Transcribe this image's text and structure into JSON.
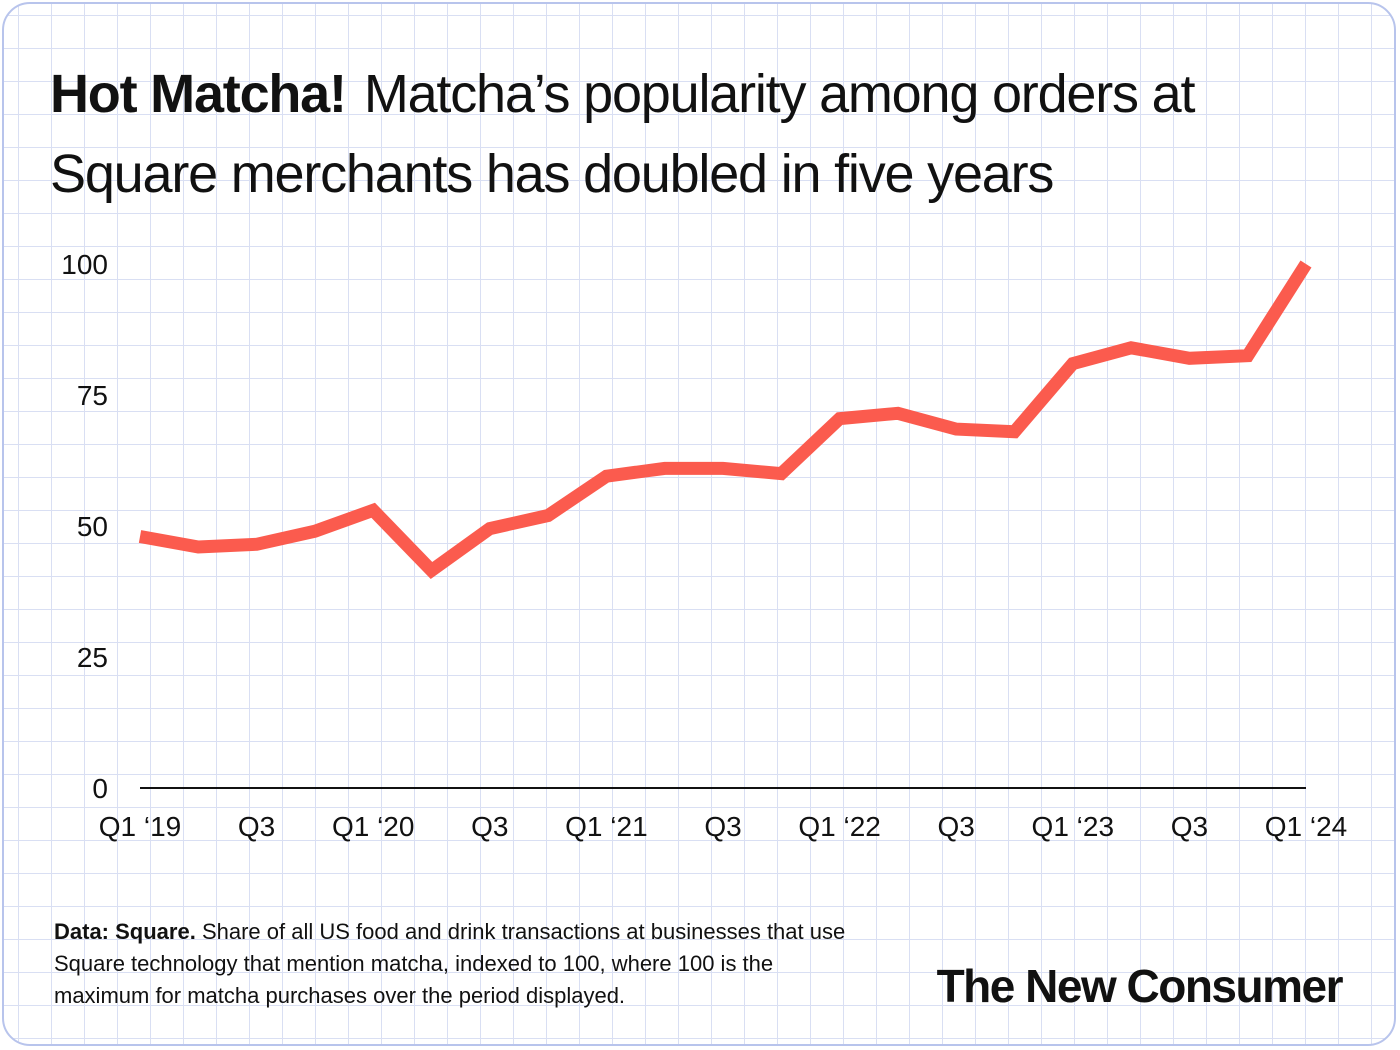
{
  "title": {
    "bold": "Hot Matcha!",
    "rest": "Matcha’s popularity among orders at Square merchants has doubled in five years"
  },
  "chart_data": {
    "type": "line",
    "title": "Hot Matcha! Matcha’s popularity among orders at Square merchants has doubled in five years",
    "xlabel": "",
    "ylabel": "",
    "ylim": [
      0,
      100
    ],
    "yticks": [
      0,
      25,
      50,
      75,
      100
    ],
    "grid": true,
    "x": [
      "Q1 2019",
      "Q2 2019",
      "Q3 2019",
      "Q4 2019",
      "Q1 2020",
      "Q2 2020",
      "Q3 2020",
      "Q4 2020",
      "Q1 2021",
      "Q2 2021",
      "Q3 2021",
      "Q4 2021",
      "Q1 2022",
      "Q2 2022",
      "Q3 2022",
      "Q4 2022",
      "Q1 2023",
      "Q2 2023",
      "Q3 2023",
      "Q4 2023",
      "Q1 2024"
    ],
    "xtick_labels": [
      "Q1 ‘19",
      "Q3",
      "Q1 ‘20",
      "Q3",
      "Q1 ‘21",
      "Q3",
      "Q1 ‘22",
      "Q3",
      "Q1 ‘23",
      "Q3",
      "Q1 ‘24"
    ],
    "xtick_indices": [
      0,
      2,
      4,
      6,
      8,
      10,
      12,
      14,
      16,
      18,
      20
    ],
    "series": [
      {
        "name": "Matcha popularity index",
        "color": "#fb5b4e",
        "values": [
          48,
          46,
          46.5,
          49,
          53,
          41.5,
          49.5,
          52,
          59.5,
          61,
          61,
          60,
          70.5,
          71.5,
          68.5,
          68,
          81,
          84,
          82,
          82.5,
          100
        ]
      }
    ]
  },
  "footnote": {
    "bold": "Data: Square.",
    "text": "Share of all US food and drink transactions at businesses that use Square technology that mention matcha, indexed to 100, where 100 is the maximum for matcha purchases over the period displayed."
  },
  "brand": "The New Consumer"
}
